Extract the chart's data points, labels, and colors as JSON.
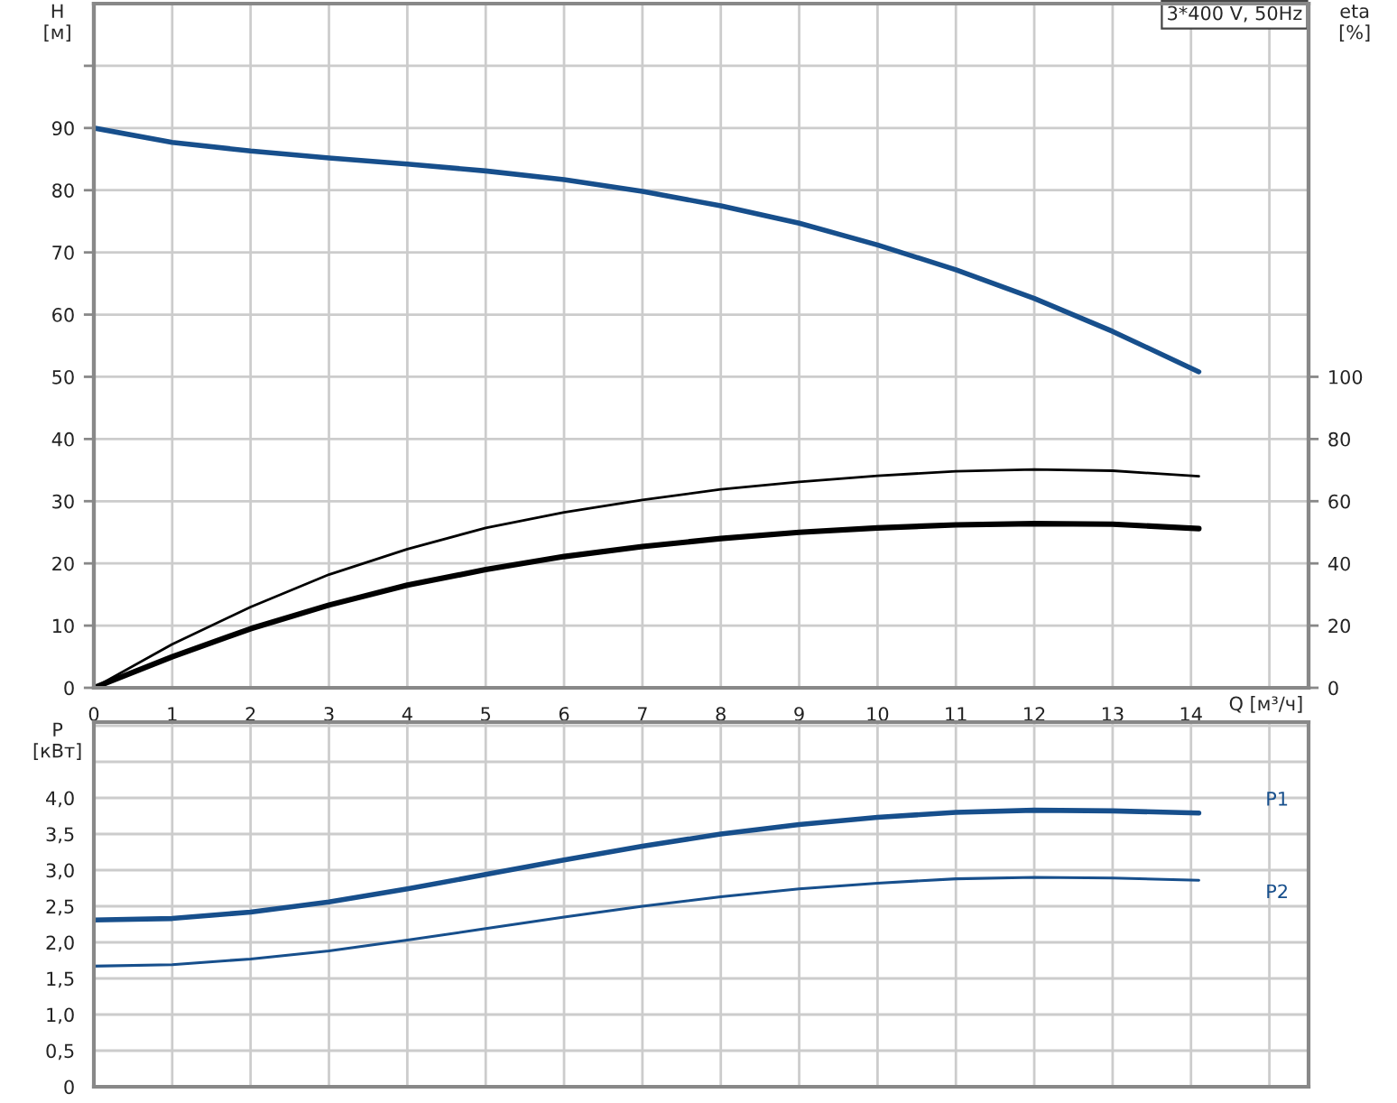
{
  "chart_data": [
    {
      "type": "line",
      "ylabel": "H\n[м]",
      "y2label": "eta\n[%]",
      "xlabel": "Q [м³/ч]",
      "annotations": [
        "3*400 V, 50Hz"
      ],
      "grid": true,
      "legend": false,
      "tick_labels": "xy",
      "xlim": [
        0,
        15.5
      ],
      "xticks": [
        0,
        1,
        2,
        3,
        4,
        5,
        6,
        7,
        8,
        9,
        10,
        11,
        12,
        13,
        14,
        {
          "value": 15,
          "label": null
        }
      ],
      "ylim": [
        0,
        110
      ],
      "yticks": [
        0,
        10,
        20,
        30,
        40,
        50,
        60,
        70,
        80,
        90,
        {
          "value": 100,
          "label": null
        }
      ],
      "y2lim": [
        0,
        220
      ],
      "y2ticks": [
        0,
        20,
        40,
        60,
        80,
        100
      ],
      "series": [
        {
          "color": "#174f8c",
          "x": [
            0,
            1,
            2,
            3,
            4,
            5,
            6,
            7,
            8,
            9,
            10,
            11,
            12,
            13,
            14.1
          ],
          "values": [
            90,
            87.7,
            86.3,
            85.2,
            84.2,
            83.1,
            81.7,
            79.8,
            77.5,
            74.7,
            71.2,
            67.2,
            62.6,
            57.3,
            50.8
          ]
        },
        {
          "color": "#000000",
          "axis": "y2",
          "x": [
            0,
            1,
            2,
            3,
            4,
            5,
            6,
            7,
            8,
            9,
            10,
            11,
            12,
            13,
            14.1
          ],
          "values": [
            0,
            14,
            26,
            36.4,
            44.6,
            51.4,
            56.4,
            60.4,
            63.8,
            66.2,
            68.2,
            69.6,
            70.2,
            69.8,
            68
          ]
        },
        {
          "color": "#000000",
          "axis": "y2",
          "x": [
            0,
            1,
            2,
            3,
            4,
            5,
            6,
            7,
            8,
            9,
            10,
            11,
            12,
            13,
            14.1
          ],
          "values": [
            0,
            10,
            19,
            26.6,
            33,
            38,
            42.2,
            45.4,
            48,
            50,
            51.4,
            52.4,
            52.8,
            52.6,
            51.2
          ]
        }
      ]
    },
    {
      "type": "line",
      "ylabel": "P\n[кВт]",
      "grid": true,
      "legend": false,
      "tick_labels": "y",
      "xlim": [
        0,
        15.5
      ],
      "xticks": [
        0,
        1,
        2,
        3,
        4,
        5,
        6,
        7,
        8,
        9,
        10,
        11,
        12,
        13,
        14,
        15
      ],
      "ylim": [
        0,
        5.05
      ],
      "yticks": [
        {
          "value": 0,
          "label": "0"
        },
        {
          "value": 0.5,
          "label": "0,5"
        },
        {
          "value": 1,
          "label": "1,0"
        },
        {
          "value": 1.5,
          "label": "1,5"
        },
        {
          "value": 2,
          "label": "2,0"
        },
        {
          "value": 2.5,
          "label": "2,5"
        },
        {
          "value": 3,
          "label": "3,0"
        },
        {
          "value": 3.5,
          "label": "3,5"
        },
        {
          "value": 4,
          "label": "4,0"
        },
        {
          "value": 4.5,
          "label": null
        },
        {
          "value": 5,
          "label": null
        }
      ],
      "series": [
        {
          "name": "P1",
          "color": "#174f8c",
          "x": [
            0,
            1,
            2,
            3,
            4,
            5,
            6,
            7,
            8,
            9,
            10,
            11,
            12,
            13,
            14.1
          ],
          "values": [
            2.31,
            2.33,
            2.42,
            2.56,
            2.74,
            2.94,
            3.14,
            3.33,
            3.5,
            3.63,
            3.73,
            3.8,
            3.83,
            3.82,
            3.79
          ]
        },
        {
          "name": "P2",
          "color": "#174f8c",
          "x": [
            0,
            1,
            2,
            3,
            4,
            5,
            6,
            7,
            8,
            9,
            10,
            11,
            12,
            13,
            14.1
          ],
          "values": [
            1.67,
            1.69,
            1.77,
            1.88,
            2.03,
            2.19,
            2.35,
            2.5,
            2.63,
            2.74,
            2.82,
            2.88,
            2.9,
            2.89,
            2.86
          ]
        }
      ]
    }
  ]
}
